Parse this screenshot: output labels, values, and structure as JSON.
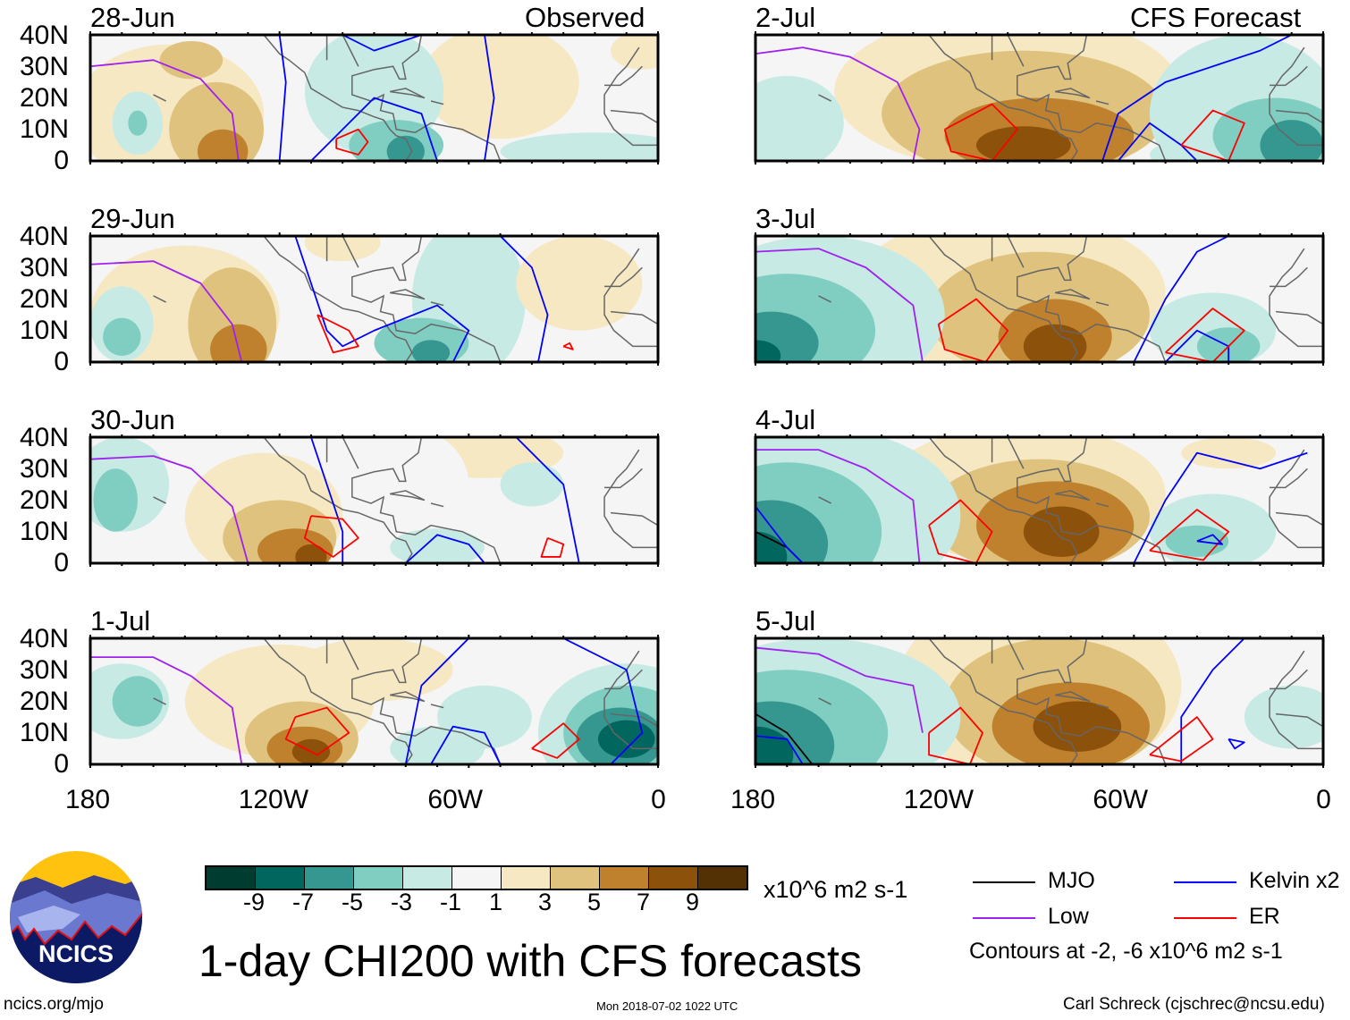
{
  "title": "1-day CHI200 with CFS forecasts",
  "observed_label": "Observed",
  "forecast_label": "CFS Forecast",
  "footer": {
    "left": "ncics.org/mjo",
    "center": "Mon 2018-07-02 1022 UTC",
    "right": "Carl Schreck (cjschrec@ncsu.edu)"
  },
  "logo_text": "NCICS",
  "colorbar": {
    "units": "x10^6 m2 s-1",
    "labels": [
      "-9",
      "-7",
      "-5",
      "-3",
      "-1",
      "1",
      "3",
      "5",
      "7",
      "9"
    ],
    "colors": [
      "#003c30",
      "#01665e",
      "#35978f",
      "#80cdc1",
      "#c7eae5",
      "#f5f5f5",
      "#f6e8c3",
      "#dfc27d",
      "#bf812d",
      "#8c510a",
      "#543005"
    ]
  },
  "legend": {
    "items": [
      {
        "label": "MJO",
        "color": "#000000"
      },
      {
        "label": "Kelvin x2",
        "color": "#0000ff"
      },
      {
        "label": "Low",
        "color": "#a020f0"
      },
      {
        "label": "ER",
        "color": "#ff0000"
      }
    ],
    "note": "Contours at -2, -6 x10^6 m2 s-1"
  },
  "chart_data": {
    "type": "heatmap",
    "variable": "CHI200",
    "lat_labels": [
      "40N",
      "30N",
      "20N",
      "10N",
      "0"
    ],
    "lon_labels": [
      "180",
      "120W",
      "60W",
      "0"
    ],
    "lat_range": [
      0,
      40
    ],
    "lon_range": [
      -180,
      0
    ],
    "panels": [
      {
        "date": "28-Jun",
        "type": "observed"
      },
      {
        "date": "29-Jun",
        "type": "observed"
      },
      {
        "date": "30-Jun",
        "type": "observed"
      },
      {
        "date": "1-Jul",
        "type": "observed"
      },
      {
        "date": "2-Jul",
        "type": "forecast"
      },
      {
        "date": "3-Jul",
        "type": "forecast"
      },
      {
        "date": "4-Jul",
        "type": "forecast"
      },
      {
        "date": "5-Jul",
        "type": "forecast"
      }
    ]
  }
}
